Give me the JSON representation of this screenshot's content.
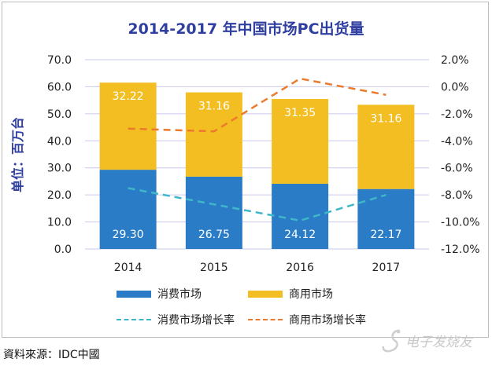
{
  "chart_data": {
    "type": "bar",
    "stacked": true,
    "title": "2014-2017 年中国市场PC出货量",
    "ylabel": "单位：百万台",
    "categories": [
      "2014",
      "2015",
      "2016",
      "2017"
    ],
    "ylim": [
      0,
      70
    ],
    "y_ticks": [
      "0.0",
      "10.0",
      "20.0",
      "30.0",
      "40.0",
      "50.0",
      "60.0",
      "70.0"
    ],
    "y2lim": [
      -12,
      2
    ],
    "y2_ticks": [
      "-12.0%",
      "-10.0%",
      "-8.0%",
      "-6.0%",
      "-4.0%",
      "-2.0%",
      "0.0%",
      "2.0%"
    ],
    "series": [
      {
        "name": "消费市场",
        "kind": "bar",
        "color": "#2a7cc6",
        "values": [
          29.3,
          26.75,
          24.12,
          22.17
        ],
        "labels": [
          "29.30",
          "26.75",
          "24.12",
          "22.17"
        ]
      },
      {
        "name": "商用市场",
        "kind": "bar",
        "color": "#f3be22",
        "values": [
          32.22,
          31.16,
          31.35,
          31.16
        ],
        "labels": [
          "32.22",
          "31.16",
          "31.35",
          "31.16"
        ]
      },
      {
        "name": "消费市场增长率",
        "kind": "line",
        "axis": "right",
        "dashed": true,
        "color": "#3fb7c9",
        "values": [
          -7.5,
          -8.7,
          -9.9,
          -8.0
        ]
      },
      {
        "name": "商用市场增长率",
        "kind": "line",
        "axis": "right",
        "dashed": true,
        "color": "#ec7a2c",
        "values": [
          -3.1,
          -3.3,
          0.6,
          -0.6
        ]
      }
    ],
    "legend_position": "bottom",
    "gridlines": true
  },
  "source": "資料來源：IDC中國",
  "watermark": {
    "text": "电子发烧友",
    "icon": "swan-logo-icon"
  }
}
